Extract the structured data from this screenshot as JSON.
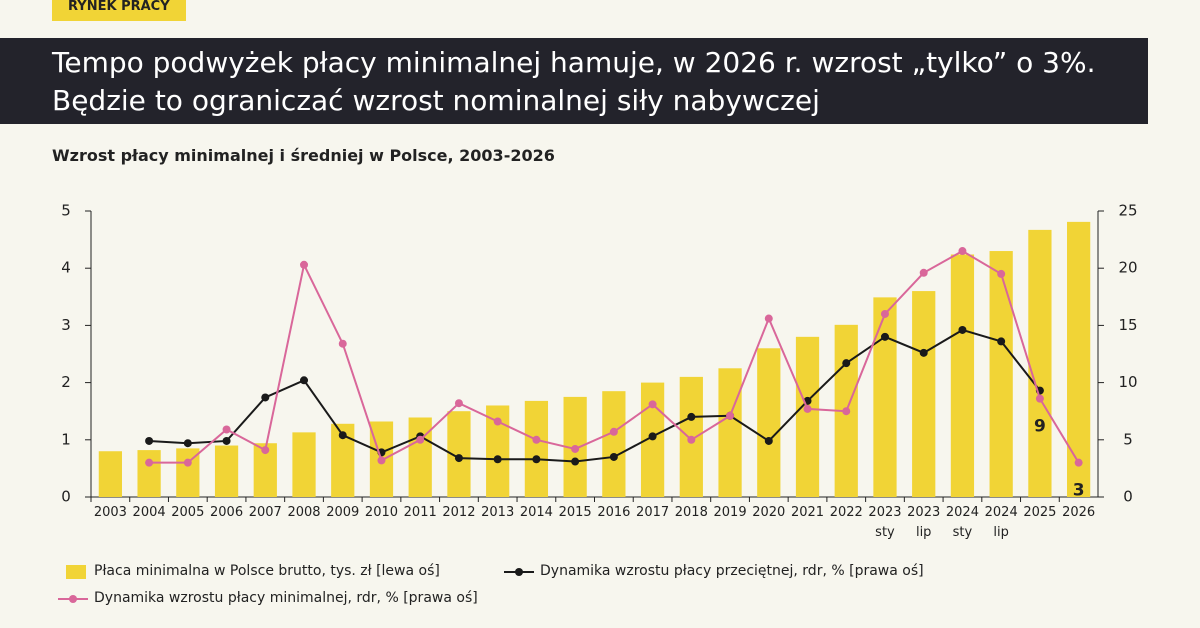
{
  "tag": "RYNEK PRACY",
  "headline": "Tempo podwyżek płacy minimalnej hamuje, w 2026 r. wzrost „tylko” o 3%. Będzie to ograniczać wzrost nominalnej siły nabywczej",
  "chart_data": {
    "type": "bar",
    "title": "Wzrost płacy minimalnej i średniej w Polsce, 2003-2026",
    "categories": [
      "2003",
      "2004",
      "2005",
      "2006",
      "2007",
      "2008",
      "2009",
      "2010",
      "2011",
      "2012",
      "2013",
      "2014",
      "2015",
      "2016",
      "2017",
      "2018",
      "2019",
      "2020",
      "2021",
      "2022",
      "2023 sty",
      "2023 lip",
      "2024 sty",
      "2024 lip",
      "2025",
      "2026"
    ],
    "ylim": [
      0,
      5
    ],
    "yticks": [
      0,
      1,
      2,
      3,
      4,
      5
    ],
    "y2lim": [
      0,
      25
    ],
    "y2ticks": [
      0,
      5,
      10,
      15,
      20,
      25
    ],
    "series": [
      {
        "name": "Płaca minimalna w Polsce brutto, tys. zł [lewa oś]",
        "type": "bar",
        "color": "#f1d436",
        "values": [
          0.8,
          0.82,
          0.85,
          0.9,
          0.94,
          1.13,
          1.28,
          1.32,
          1.39,
          1.5,
          1.6,
          1.68,
          1.75,
          1.85,
          2.0,
          2.1,
          2.25,
          2.6,
          2.8,
          3.01,
          3.49,
          3.6,
          4.24,
          4.3,
          4.67,
          4.81
        ]
      },
      {
        "name": "Dynamika wzrostu płacy przeciętnej, rdr, % [prawa oś]",
        "type": "line",
        "axis": "y2",
        "color": "#1a1a1a",
        "values": [
          null,
          4.9,
          4.7,
          4.9,
          8.7,
          10.2,
          5.4,
          3.9,
          5.3,
          3.4,
          3.3,
          3.3,
          3.1,
          3.5,
          5.3,
          7.0,
          7.1,
          4.9,
          8.4,
          11.7,
          14.0,
          12.6,
          14.6,
          13.6,
          9.3,
          null
        ]
      },
      {
        "name": "Dynamika wzrostu płacy minimalnej, rdr, % [prawa oś]",
        "type": "line",
        "axis": "y2",
        "color": "#d9679a",
        "values": [
          null,
          3.0,
          3.0,
          5.9,
          4.1,
          20.3,
          13.4,
          3.2,
          5.0,
          8.2,
          6.6,
          5.0,
          4.2,
          5.7,
          8.1,
          5.0,
          7.1,
          15.6,
          7.7,
          7.5,
          16.0,
          19.6,
          21.5,
          19.5,
          8.6,
          3.0
        ],
        "value_labels": [
          null,
          null,
          null,
          null,
          null,
          null,
          null,
          null,
          null,
          null,
          null,
          null,
          null,
          null,
          null,
          null,
          null,
          null,
          null,
          null,
          null,
          null,
          null,
          null,
          "9",
          "3"
        ]
      }
    ]
  }
}
